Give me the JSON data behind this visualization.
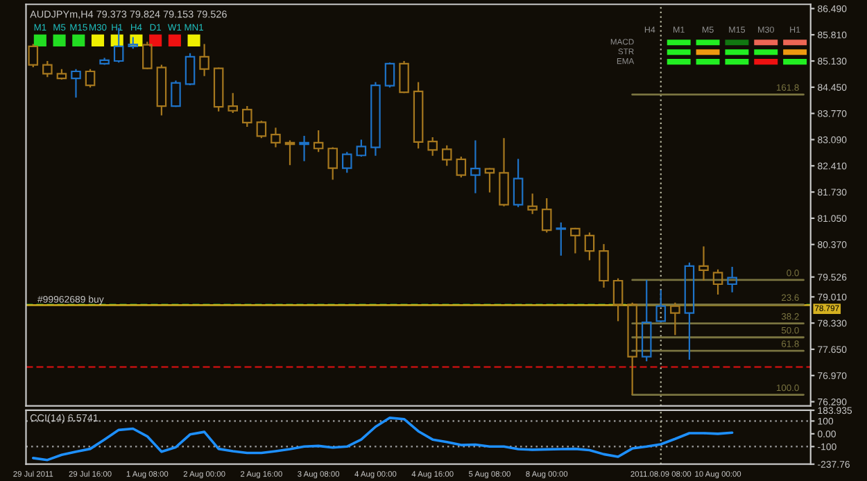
{
  "chart_data": [
    {
      "type": "candlestick",
      "title": "AUDJPYm,H4 79.373 79.824 79.153 79.526",
      "categories": [
        "29 Jul 2011",
        null,
        null,
        null,
        "29 Jul 16:00",
        null,
        null,
        null,
        "1 Aug 08:00",
        null,
        null,
        null,
        "2 Aug 00:00",
        null,
        null,
        null,
        "2 Aug 16:00",
        null,
        null,
        null,
        "3 Aug 08:00",
        null,
        null,
        null,
        "4 Aug 00:00",
        null,
        null,
        null,
        "4 Aug 16:00",
        null,
        null,
        null,
        "5 Aug 08:00",
        null,
        null,
        null,
        "8 Aug 00:00",
        null,
        null,
        null,
        null,
        null,
        null,
        null,
        "2011.08.09 08:00",
        null,
        null,
        null,
        "10 Aug 00:00",
        null,
        null,
        null,
        null,
        null,
        null
      ],
      "ohlc": [
        [
          85.51,
          85.57,
          84.97,
          85.03
        ],
        [
          85.03,
          85.13,
          84.71,
          84.8
        ],
        [
          84.8,
          84.92,
          84.65,
          84.68
        ],
        [
          84.68,
          84.92,
          84.18,
          84.86
        ],
        [
          84.86,
          84.92,
          84.44,
          84.5
        ],
        [
          85.06,
          85.21,
          85.03,
          85.15
        ],
        [
          85.13,
          85.99,
          85.09,
          85.51
        ],
        [
          85.51,
          85.75,
          85.45,
          85.56
        ],
        [
          85.55,
          85.63,
          84.92,
          84.94
        ],
        [
          84.96,
          85.03,
          83.72,
          83.96
        ],
        [
          83.96,
          84.62,
          83.94,
          84.56
        ],
        [
          84.53,
          85.33,
          84.5,
          85.24
        ],
        [
          85.24,
          85.57,
          84.74,
          84.92
        ],
        [
          84.94,
          84.96,
          83.82,
          83.94
        ],
        [
          83.96,
          84.3,
          83.78,
          83.84
        ],
        [
          83.87,
          83.96,
          83.42,
          83.53
        ],
        [
          83.54,
          83.58,
          83.13,
          83.18
        ],
        [
          83.22,
          83.4,
          82.89,
          83.01
        ],
        [
          83.01,
          83.07,
          82.43,
          82.97
        ],
        [
          82.97,
          83.19,
          82.53,
          83.01
        ],
        [
          83.01,
          83.33,
          82.77,
          82.86
        ],
        [
          82.86,
          82.89,
          82.05,
          82.35
        ],
        [
          82.35,
          82.77,
          82.23,
          82.71
        ],
        [
          82.68,
          83.09,
          82.65,
          82.91
        ],
        [
          82.89,
          84.58,
          82.67,
          84.5
        ],
        [
          84.49,
          85.09,
          84.44,
          85.06
        ],
        [
          85.06,
          85.13,
          84.3,
          84.32
        ],
        [
          84.34,
          84.58,
          82.86,
          83.03
        ],
        [
          83.04,
          83.15,
          82.67,
          82.82
        ],
        [
          82.84,
          82.94,
          82.41,
          82.57
        ],
        [
          82.58,
          82.65,
          82.11,
          82.17
        ],
        [
          82.17,
          83.07,
          81.7,
          82.34
        ],
        [
          82.33,
          82.35,
          81.72,
          82.23
        ],
        [
          82.23,
          83.13,
          81.36,
          81.4
        ],
        [
          81.4,
          82.59,
          81.34,
          82.08
        ],
        [
          81.36,
          81.69,
          81.16,
          81.27
        ],
        [
          81.28,
          81.57,
          80.68,
          80.74
        ],
        [
          80.77,
          80.94,
          80.08,
          80.79
        ],
        [
          80.78,
          80.8,
          80.14,
          80.6
        ],
        [
          80.6,
          80.68,
          79.96,
          80.2
        ],
        [
          80.2,
          80.38,
          79.25,
          79.43
        ],
        [
          79.43,
          79.49,
          78.38,
          78.81
        ],
        [
          78.81,
          78.86,
          76.47,
          77.46
        ],
        [
          77.46,
          79.45,
          77.34,
          78.35
        ],
        [
          78.38,
          79.19,
          78.35,
          78.77
        ],
        [
          78.77,
          78.86,
          78.02,
          78.59
        ],
        [
          78.59,
          79.9,
          77.38,
          79.81
        ],
        [
          79.81,
          80.32,
          79.43,
          79.7
        ],
        [
          79.64,
          79.72,
          79.07,
          79.34
        ],
        [
          79.34,
          79.79,
          79.13,
          79.51
        ],
        null,
        null,
        null,
        null,
        null
      ],
      "colors": [
        "#a6781e",
        "#a6781e",
        "#a6781e",
        "#1e73c8",
        "#a6781e",
        "#1e73c8",
        "#1e73c8",
        "#1e73c8",
        "#a6781e",
        "#a6781e",
        "#1e73c8",
        "#1e73c8",
        "#a6781e",
        "#a6781e",
        "#a6781e",
        "#a6781e",
        "#a6781e",
        "#a6781e",
        "#a6781e",
        "#1e73c8",
        "#a6781e",
        "#a6781e",
        "#1e73c8",
        "#1e73c8",
        "#1e73c8",
        "#1e73c8",
        "#a6781e",
        "#a6781e",
        "#a6781e",
        "#a6781e",
        "#a6781e",
        "#1e73c8",
        "#a6781e",
        "#a6781e",
        "#1e73c8",
        "#a6781e",
        "#a6781e",
        "#1e73c8",
        "#a6781e",
        "#a6781e",
        "#a6781e",
        "#a6781e",
        "#a6781e",
        "#1e73c8",
        "#1e73c8",
        "#a6781e",
        "#1e73c8",
        "#a6781e",
        "#a6781e",
        "#1e73c8",
        null,
        null,
        null,
        null,
        null
      ],
      "series": [
        {
          "type": "line",
          "name": "161.8",
          "color": "#7a7440",
          "values": [
            null,
            null,
            null,
            null,
            null,
            null,
            null,
            null,
            null,
            null,
            null,
            null,
            null,
            null,
            null,
            null,
            null,
            null,
            null,
            null,
            null,
            null,
            null,
            null,
            null,
            null,
            null,
            null,
            null,
            null,
            null,
            null,
            null,
            null,
            null,
            null,
            null,
            null,
            null,
            null,
            null,
            null,
            84.26,
            84.26,
            84.26,
            84.26,
            84.26,
            84.26,
            84.26,
            84.26,
            84.26,
            84.26,
            84.26,
            84.26,
            84.26
          ]
        },
        {
          "type": "line",
          "name": "0.0",
          "color": "#7a7440",
          "values": [
            null,
            null,
            null,
            null,
            null,
            null,
            null,
            null,
            null,
            null,
            null,
            null,
            null,
            null,
            null,
            null,
            null,
            null,
            null,
            null,
            null,
            null,
            null,
            null,
            null,
            null,
            null,
            null,
            null,
            null,
            null,
            null,
            null,
            null,
            null,
            null,
            null,
            null,
            null,
            null,
            null,
            null,
            79.45,
            79.45,
            79.45,
            79.45,
            79.45,
            79.45,
            79.45,
            79.45,
            79.45,
            79.45,
            79.45,
            79.45,
            79.45
          ]
        },
        {
          "type": "line",
          "name": "23.6",
          "color": "#7a7440",
          "values": [
            null,
            null,
            null,
            null,
            null,
            null,
            null,
            null,
            null,
            null,
            null,
            null,
            null,
            null,
            null,
            null,
            null,
            null,
            null,
            null,
            null,
            null,
            null,
            null,
            null,
            null,
            null,
            null,
            null,
            null,
            null,
            null,
            null,
            null,
            null,
            null,
            null,
            null,
            null,
            null,
            null,
            null,
            78.81,
            78.81,
            78.81,
            78.81,
            78.81,
            78.81,
            78.81,
            78.81,
            78.81,
            78.81,
            78.81,
            78.81,
            78.81
          ]
        },
        {
          "type": "line",
          "name": "38.2",
          "color": "#7a7440",
          "values": [
            null,
            null,
            null,
            null,
            null,
            null,
            null,
            null,
            null,
            null,
            null,
            null,
            null,
            null,
            null,
            null,
            null,
            null,
            null,
            null,
            null,
            null,
            null,
            null,
            null,
            null,
            null,
            null,
            null,
            null,
            null,
            null,
            null,
            null,
            null,
            null,
            null,
            null,
            null,
            null,
            null,
            null,
            78.32,
            78.32,
            78.32,
            78.32,
            78.32,
            78.32,
            78.32,
            78.32,
            78.32,
            78.32,
            78.32,
            78.32,
            78.32
          ]
        },
        {
          "type": "line",
          "name": "50.0",
          "color": "#7a7440",
          "values": [
            null,
            null,
            null,
            null,
            null,
            null,
            null,
            null,
            null,
            null,
            null,
            null,
            null,
            null,
            null,
            null,
            null,
            null,
            null,
            null,
            null,
            null,
            null,
            null,
            null,
            null,
            null,
            null,
            null,
            null,
            null,
            null,
            null,
            null,
            null,
            null,
            null,
            null,
            null,
            null,
            null,
            null,
            77.96,
            77.96,
            77.96,
            77.96,
            77.96,
            77.96,
            77.96,
            77.96,
            77.96,
            77.96,
            77.96,
            77.96,
            77.96
          ]
        },
        {
          "type": "line",
          "name": "61.8",
          "color": "#7a7440",
          "values": [
            null,
            null,
            null,
            null,
            null,
            null,
            null,
            null,
            null,
            null,
            null,
            null,
            null,
            null,
            null,
            null,
            null,
            null,
            null,
            null,
            null,
            null,
            null,
            null,
            null,
            null,
            null,
            null,
            null,
            null,
            null,
            null,
            null,
            null,
            null,
            null,
            null,
            null,
            null,
            null,
            null,
            null,
            77.61,
            77.61,
            77.61,
            77.61,
            77.61,
            77.61,
            77.61,
            77.61,
            77.61,
            77.61,
            77.61,
            77.61,
            77.61
          ]
        },
        {
          "type": "line",
          "name": "100.0",
          "color": "#7a7440",
          "values": [
            null,
            null,
            null,
            null,
            null,
            null,
            null,
            null,
            null,
            null,
            null,
            null,
            null,
            null,
            null,
            null,
            null,
            null,
            null,
            null,
            null,
            null,
            null,
            null,
            null,
            null,
            null,
            null,
            null,
            null,
            null,
            null,
            null,
            null,
            null,
            null,
            null,
            null,
            null,
            null,
            null,
            null,
            76.47,
            76.47,
            76.47,
            76.47,
            76.47,
            76.47,
            76.47,
            76.47,
            76.47,
            76.47,
            76.47,
            76.47,
            76.47
          ]
        }
      ],
      "ylim": [
        76.18,
        86.6
      ],
      "yticks": [
        {
          "value": 86.49,
          "label": "86.490"
        },
        {
          "value": 85.81,
          "label": "85.810"
        },
        {
          "value": 85.13,
          "label": "85.130"
        },
        {
          "value": 84.45,
          "label": "84.450"
        },
        {
          "value": 83.77,
          "label": "83.770"
        },
        {
          "value": 83.09,
          "label": "83.090"
        },
        {
          "value": 82.41,
          "label": "82.410"
        },
        {
          "value": 81.73,
          "label": "81.730"
        },
        {
          "value": 81.05,
          "label": "81.050"
        },
        {
          "value": 80.37,
          "label": "80.370"
        },
        {
          "value": 79.526,
          "label": "79.526"
        },
        {
          "value": 79.01,
          "label": "79.010"
        },
        {
          "value": 78.33,
          "label": "78.330"
        },
        {
          "value": 77.65,
          "label": "77.650"
        },
        {
          "value": 76.97,
          "label": "76.970"
        },
        {
          "value": 76.29,
          "label": "76.290"
        }
      ],
      "ref_lines": [
        {
          "axis": "y",
          "value": 78.81,
          "label": "#99962689 buy",
          "color": "#1f8f1f",
          "line_style": "dashed"
        },
        {
          "axis": "y",
          "value": 78.797,
          "label": "78.797",
          "color": "#d4b020",
          "line_style": "solid"
        },
        {
          "axis": "y",
          "value": 77.19,
          "color": "#c01010",
          "line_style": "dashed"
        },
        {
          "axis": "x",
          "value": "2011.08.09 08:00",
          "color": "#b8b8a0",
          "line_style": "dotted"
        }
      ],
      "annotations": [
        "M1",
        "M5",
        "M15",
        "M30",
        "H1",
        "H4",
        "D1",
        "W1",
        "MN1",
        "H4",
        "M1",
        "M5",
        "M15",
        "M30",
        "H1",
        "MACD",
        "STR",
        "EMA"
      ],
      "tick_labels": "y",
      "grid": false
    },
    {
      "type": "line",
      "title": "CCI(14) 6.5741",
      "categories": [
        "29 Jul 2011",
        null,
        null,
        null,
        "29 Jul 16:00",
        null,
        null,
        null,
        "1 Aug 08:00",
        null,
        null,
        null,
        "2 Aug 00:00",
        null,
        null,
        null,
        "2 Aug 16:00",
        null,
        null,
        null,
        "3 Aug 08:00",
        null,
        null,
        null,
        "4 Aug 00:00",
        null,
        null,
        null,
        "4 Aug 16:00",
        null,
        null,
        null,
        "5 Aug 08:00",
        null,
        null,
        null,
        "8 Aug 00:00",
        null,
        null,
        null,
        null,
        null,
        null,
        null,
        "2011.08.09 08:00",
        null,
        null,
        null,
        "10 Aug 00:00",
        null,
        null,
        null,
        null,
        null,
        null
      ],
      "series": [
        {
          "color": "#1e90ff",
          "values": [
            -190,
            -205,
            -165,
            -140,
            -118,
            -45,
            30,
            40,
            -20,
            -140,
            -105,
            -5,
            15,
            -118,
            -136,
            -150,
            -150,
            -136,
            -120,
            -100,
            -95,
            -108,
            -100,
            -45,
            55,
            125,
            115,
            20,
            -45,
            -64,
            -88,
            -85,
            -100,
            -100,
            -120,
            -125,
            -122,
            -120,
            -118,
            -128,
            -160,
            -180,
            -115,
            -100,
            -82,
            -40,
            5,
            5,
            0,
            9,
            null,
            null,
            null,
            null,
            null
          ]
        }
      ],
      "ylim": [
        -237.76,
        183.935
      ],
      "yticks": [
        {
          "value": 183.935,
          "label": "183.935"
        },
        100,
        {
          "value": 0,
          "label": "0.00"
        },
        -100,
        {
          "value": -237.76,
          "label": "-237.76"
        }
      ],
      "ref_lines": [
        {
          "axis": "y",
          "value": 100,
          "color": "#909090",
          "line_style": "dotted"
        },
        {
          "axis": "y",
          "value": -100,
          "color": "#909090",
          "line_style": "dotted"
        },
        {
          "axis": "x",
          "value": "2011.08.09 08:00",
          "color": "#b8b8a0",
          "line_style": "dotted"
        }
      ],
      "grid": false
    }
  ]
}
